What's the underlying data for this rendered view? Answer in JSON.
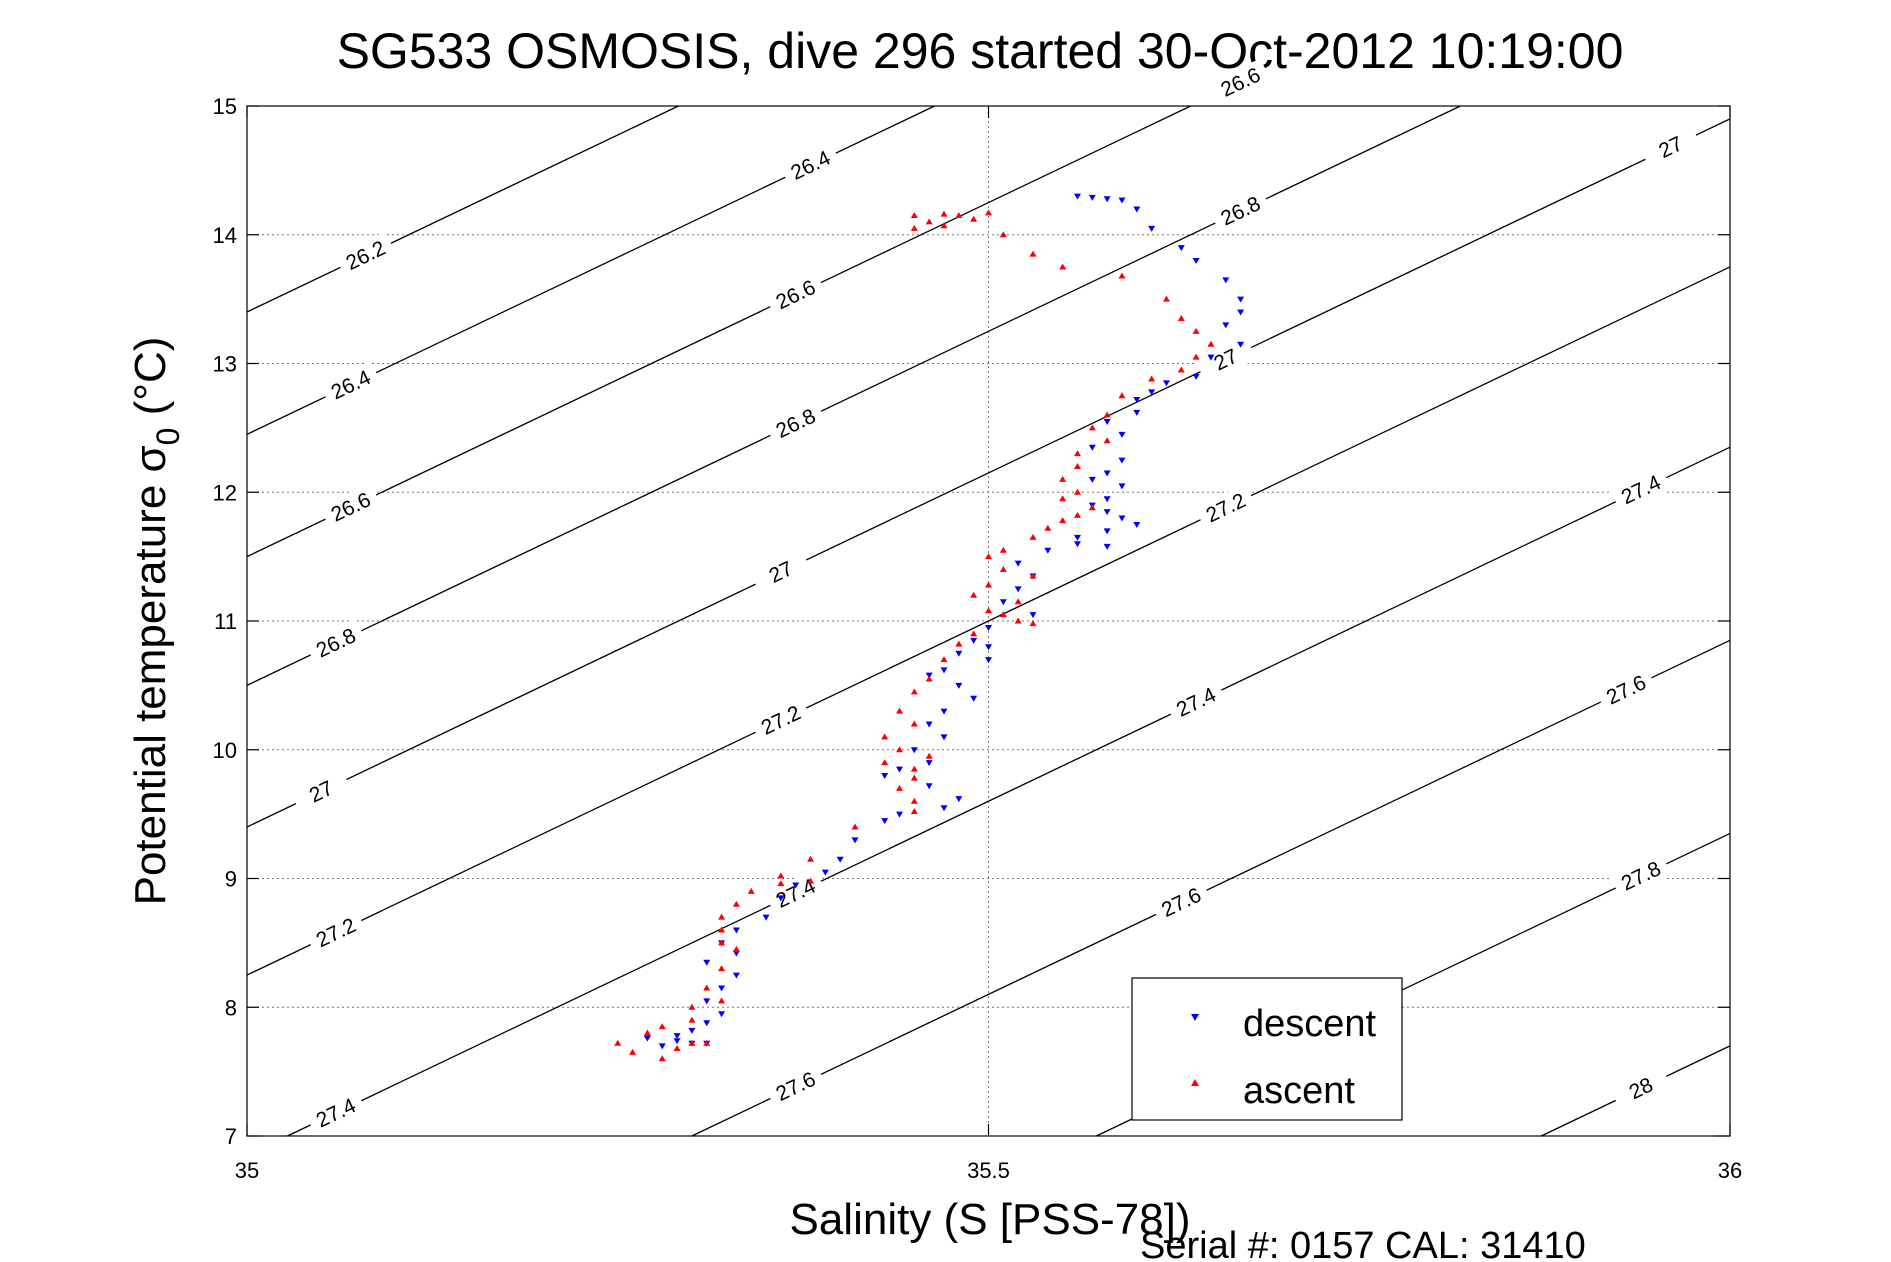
{
  "chart_data": {
    "type": "scatter",
    "title": "SG533 OSMOSIS, dive 296 started 30-Oct-2012 10:19:00",
    "xlabel": "Salinity (S [PSS-78])",
    "ylabel": "Potential temperature σ",
    "ylabel_subscript": "0",
    "ylabel_unit": " (°C)",
    "xlim": [
      35,
      36
    ],
    "ylim": [
      7,
      15
    ],
    "xticks": [
      35,
      35.5,
      36
    ],
    "xtick_labels": [
      "35",
      "35.5",
      "36"
    ],
    "yticks": [
      7,
      8,
      9,
      10,
      11,
      12,
      13,
      14,
      15
    ],
    "ytick_labels": [
      "7",
      "8",
      "9",
      "10",
      "11",
      "12",
      "13",
      "14",
      "15"
    ],
    "grid": true,
    "legend_position": "bottom-right",
    "colors": {
      "descent": "#0000ff",
      "ascent": "#ff0000",
      "contour": "#000000"
    },
    "series": [
      {
        "name": "descent",
        "marker": "triangle-down",
        "color": "#0000ff",
        "points": [
          [
            35.56,
            14.3
          ],
          [
            35.57,
            14.29
          ],
          [
            35.58,
            14.28
          ],
          [
            35.59,
            14.27
          ],
          [
            35.6,
            14.2
          ],
          [
            35.61,
            14.05
          ],
          [
            35.63,
            13.9
          ],
          [
            35.64,
            13.8
          ],
          [
            35.66,
            13.65
          ],
          [
            35.67,
            13.5
          ],
          [
            35.67,
            13.4
          ],
          [
            35.66,
            13.3
          ],
          [
            35.67,
            13.15
          ],
          [
            35.65,
            13.05
          ],
          [
            35.64,
            12.9
          ],
          [
            35.62,
            12.85
          ],
          [
            35.61,
            12.78
          ],
          [
            35.6,
            12.72
          ],
          [
            35.6,
            12.62
          ],
          [
            35.58,
            12.55
          ],
          [
            35.59,
            12.45
          ],
          [
            35.57,
            12.35
          ],
          [
            35.59,
            12.25
          ],
          [
            35.58,
            12.15
          ],
          [
            35.57,
            12.1
          ],
          [
            35.59,
            12.05
          ],
          [
            35.58,
            11.95
          ],
          [
            35.57,
            11.9
          ],
          [
            35.58,
            11.85
          ],
          [
            35.59,
            11.8
          ],
          [
            35.6,
            11.75
          ],
          [
            35.58,
            11.7
          ],
          [
            35.56,
            11.65
          ],
          [
            35.56,
            11.6
          ],
          [
            35.58,
            11.58
          ],
          [
            35.54,
            11.55
          ],
          [
            35.52,
            11.45
          ],
          [
            35.53,
            11.35
          ],
          [
            35.52,
            11.25
          ],
          [
            35.51,
            11.15
          ],
          [
            35.53,
            11.05
          ],
          [
            35.5,
            10.95
          ],
          [
            35.49,
            10.85
          ],
          [
            35.5,
            10.8
          ],
          [
            35.48,
            10.75
          ],
          [
            35.5,
            10.7
          ],
          [
            35.47,
            10.62
          ],
          [
            35.46,
            10.58
          ],
          [
            35.48,
            10.5
          ],
          [
            35.49,
            10.4
          ],
          [
            35.47,
            10.3
          ],
          [
            35.46,
            10.2
          ],
          [
            35.47,
            10.1
          ],
          [
            35.45,
            10.0
          ],
          [
            35.46,
            9.9
          ],
          [
            35.44,
            9.85
          ],
          [
            35.43,
            9.8
          ],
          [
            35.46,
            9.72
          ],
          [
            35.48,
            9.62
          ],
          [
            35.47,
            9.55
          ],
          [
            35.44,
            9.5
          ],
          [
            35.43,
            9.45
          ],
          [
            35.41,
            9.3
          ],
          [
            35.4,
            9.15
          ],
          [
            35.39,
            9.05
          ],
          [
            35.37,
            8.95
          ],
          [
            35.36,
            8.85
          ],
          [
            35.35,
            8.7
          ],
          [
            35.33,
            8.6
          ],
          [
            35.32,
            8.5
          ],
          [
            35.33,
            8.42
          ],
          [
            35.31,
            8.35
          ],
          [
            35.33,
            8.25
          ],
          [
            35.32,
            8.15
          ],
          [
            35.31,
            8.05
          ],
          [
            35.32,
            7.95
          ],
          [
            35.31,
            7.88
          ],
          [
            35.3,
            7.82
          ],
          [
            35.29,
            7.78
          ],
          [
            35.27,
            7.76
          ],
          [
            35.29,
            7.74
          ],
          [
            35.3,
            7.72
          ],
          [
            35.31,
            7.72
          ],
          [
            35.28,
            7.7
          ]
        ]
      },
      {
        "name": "ascent",
        "marker": "triangle-up",
        "color": "#ff0000",
        "points": [
          [
            35.45,
            14.15
          ],
          [
            35.47,
            14.16
          ],
          [
            35.48,
            14.15
          ],
          [
            35.5,
            14.17
          ],
          [
            35.46,
            14.1
          ],
          [
            35.45,
            14.05
          ],
          [
            35.47,
            14.07
          ],
          [
            35.49,
            14.12
          ],
          [
            35.51,
            14.0
          ],
          [
            35.53,
            13.85
          ],
          [
            35.55,
            13.75
          ],
          [
            35.59,
            13.68
          ],
          [
            35.62,
            13.5
          ],
          [
            35.63,
            13.35
          ],
          [
            35.64,
            13.25
          ],
          [
            35.65,
            13.15
          ],
          [
            35.64,
            13.05
          ],
          [
            35.63,
            12.95
          ],
          [
            35.61,
            12.88
          ],
          [
            35.59,
            12.75
          ],
          [
            35.58,
            12.6
          ],
          [
            35.57,
            12.5
          ],
          [
            35.58,
            12.4
          ],
          [
            35.56,
            12.3
          ],
          [
            35.56,
            12.2
          ],
          [
            35.55,
            12.1
          ],
          [
            35.56,
            12.0
          ],
          [
            35.55,
            11.95
          ],
          [
            35.57,
            11.88
          ],
          [
            35.56,
            11.82
          ],
          [
            35.55,
            11.78
          ],
          [
            35.54,
            11.72
          ],
          [
            35.53,
            11.65
          ],
          [
            35.51,
            11.55
          ],
          [
            35.5,
            11.5
          ],
          [
            35.51,
            11.4
          ],
          [
            35.53,
            11.35
          ],
          [
            35.5,
            11.28
          ],
          [
            35.49,
            11.2
          ],
          [
            35.52,
            11.15
          ],
          [
            35.5,
            11.08
          ],
          [
            35.51,
            11.05
          ],
          [
            35.52,
            11.0
          ],
          [
            35.53,
            10.98
          ],
          [
            35.49,
            10.9
          ],
          [
            35.48,
            10.82
          ],
          [
            35.47,
            10.7
          ],
          [
            35.46,
            10.55
          ],
          [
            35.45,
            10.45
          ],
          [
            35.44,
            10.3
          ],
          [
            35.45,
            10.2
          ],
          [
            35.43,
            10.1
          ],
          [
            35.44,
            10.0
          ],
          [
            35.43,
            9.9
          ],
          [
            35.45,
            9.85
          ],
          [
            35.46,
            9.95
          ],
          [
            35.45,
            9.78
          ],
          [
            35.44,
            9.7
          ],
          [
            35.45,
            9.6
          ],
          [
            35.45,
            9.52
          ],
          [
            35.41,
            9.4
          ],
          [
            35.38,
            9.15
          ],
          [
            35.36,
            9.02
          ],
          [
            35.38,
            8.98
          ],
          [
            35.36,
            8.96
          ],
          [
            35.34,
            8.9
          ],
          [
            35.33,
            8.8
          ],
          [
            35.32,
            8.7
          ],
          [
            35.32,
            8.6
          ],
          [
            35.32,
            8.5
          ],
          [
            35.33,
            8.45
          ],
          [
            35.32,
            8.3
          ],
          [
            35.31,
            8.15
          ],
          [
            35.32,
            8.05
          ],
          [
            35.3,
            8.0
          ],
          [
            35.3,
            7.9
          ],
          [
            35.28,
            7.85
          ],
          [
            35.27,
            7.8
          ],
          [
            35.25,
            7.72
          ],
          [
            35.26,
            7.65
          ],
          [
            35.28,
            7.6
          ],
          [
            35.31,
            7.72
          ],
          [
            35.3,
            7.72
          ],
          [
            35.29,
            7.68
          ]
        ]
      }
    ],
    "density_contours": [
      {
        "label": "26.2",
        "t0": 13.4,
        "labels_at": [
          35.08
        ]
      },
      {
        "label": "26.4",
        "t0": 12.45,
        "labels_at": [
          35.07,
          35.38
        ]
      },
      {
        "label": "26.6",
        "t0": 11.5,
        "labels_at": [
          35.07,
          35.37,
          35.67
        ]
      },
      {
        "label": "26.8",
        "t0": 10.5,
        "labels_at": [
          35.06,
          35.37,
          35.67
        ]
      },
      {
        "label": "27",
        "t0": 9.4,
        "labels_at": [
          35.05,
          35.36,
          35.66,
          35.96
        ]
      },
      {
        "label": "27.2",
        "t0": 8.25,
        "labels_at": [
          35.06,
          35.36,
          35.66
        ]
      },
      {
        "label": "27.4",
        "t0": 6.85,
        "labels_at": [
          35.06,
          35.37,
          35.64,
          35.94
        ]
      },
      {
        "label": "27.6",
        "t0": 5.35,
        "labels_at": [
          35.37,
          35.63,
          35.93
        ]
      },
      {
        "label": "27.8",
        "t0": 3.85,
        "labels_at": [
          35.94
        ]
      },
      {
        "label": "28",
        "t0": 2.2,
        "labels_at": [
          35.94
        ]
      }
    ],
    "contour_slope": 5.5,
    "legend": [
      "descent",
      "ascent"
    ],
    "footer": "Serial #: 0157  CAL: 31410"
  }
}
